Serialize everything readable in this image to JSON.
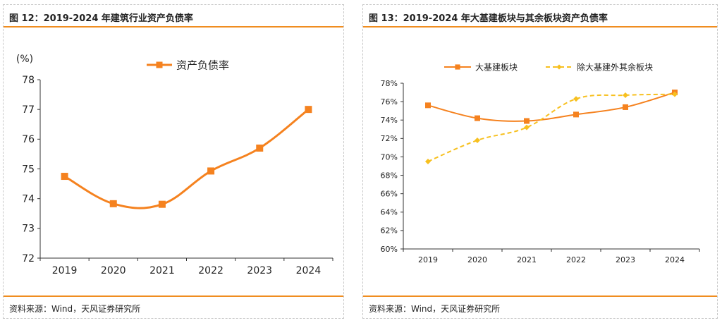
{
  "left_panel": {
    "title": "图 12：2019-2024 年建筑行业资产负债率",
    "source": "资料来源：Wind，天风证券研究所"
  },
  "right_panel": {
    "title": "图 13：2019-2024 年大基建板块与其余板块资产负债率",
    "source": "资料来源：Wind，天风证券研究所"
  },
  "chart_data": [
    {
      "type": "line",
      "ylabel": "(%)",
      "x": [
        "2019",
        "2020",
        "2021",
        "2022",
        "2023",
        "2024"
      ],
      "ylim": [
        72,
        78
      ],
      "yticks": [
        "72",
        "73",
        "74",
        "75",
        "76",
        "77",
        "78"
      ],
      "legend_position": "top-center",
      "grid": false,
      "series": [
        {
          "name": "资产负债率",
          "values": [
            74.75,
            73.83,
            73.81,
            74.93,
            75.7,
            77.0
          ],
          "color": "#f5821f",
          "dashed": false,
          "marker": "square"
        }
      ]
    },
    {
      "type": "line",
      "ylabel": "",
      "x": [
        "2019",
        "2020",
        "2021",
        "2022",
        "2023",
        "2024"
      ],
      "ylim": [
        60,
        78
      ],
      "yticks": [
        "60%",
        "62%",
        "64%",
        "66%",
        "68%",
        "70%",
        "72%",
        "74%",
        "76%",
        "78%"
      ],
      "legend_position": "top",
      "grid": false,
      "series": [
        {
          "name": "大基建板块",
          "values": [
            75.6,
            74.2,
            73.9,
            74.6,
            75.4,
            77.0
          ],
          "color": "#f5821f",
          "dashed": false,
          "marker": "square"
        },
        {
          "name": "除大基建外其余板块",
          "values": [
            69.5,
            71.8,
            73.2,
            76.3,
            76.7,
            76.8
          ],
          "color": "#f7c01f",
          "dashed": true,
          "marker": "diamond"
        }
      ]
    }
  ]
}
